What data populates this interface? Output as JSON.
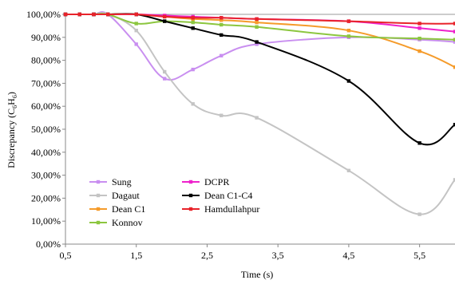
{
  "chart_data": {
    "type": "line",
    "title": "",
    "xlabel": "Time (s)",
    "ylabel": "Discrepancy (C",
    "ylabel_species": "H",
    "ylabel_sub1": "6",
    "ylabel_sub2": "6",
    "ylabel_close": ")",
    "xlim": [
      0.5,
      6.0
    ],
    "ylim": [
      0,
      100
    ],
    "xticks": [
      "0,5",
      "1,5",
      "2,5",
      "3,5",
      "4,5",
      "5,5"
    ],
    "xtick_values": [
      0.5,
      1.5,
      2.5,
      3.5,
      4.5,
      5.5
    ],
    "yticks": [
      "0,00%",
      "10,00%",
      "20,00%",
      "30,00%",
      "40,00%",
      "50,00%",
      "60,00%",
      "70,00%",
      "80,00%",
      "90,00%",
      "100,00%"
    ],
    "ytick_values": [
      0,
      10,
      20,
      30,
      40,
      50,
      60,
      70,
      80,
      90,
      100
    ],
    "grid": "horizontal line at 100% only",
    "legend_position": "lower-left",
    "series": [
      {
        "name": "Sung",
        "color": "#c98ff0",
        "x": [
          0.5,
          0.7,
          0.9,
          1.1,
          1.5,
          1.9,
          2.3,
          2.7,
          3.2,
          4.5,
          5.5,
          6.0
        ],
        "y": [
          100,
          100,
          100,
          100,
          87,
          72,
          76,
          82,
          87,
          90,
          89,
          88
        ]
      },
      {
        "name": "Dagaut",
        "color": "#c4c4c4",
        "x": [
          0.5,
          0.7,
          0.9,
          1.1,
          1.5,
          1.9,
          2.3,
          2.7,
          3.2,
          4.5,
          5.5,
          6.0
        ],
        "y": [
          100,
          100,
          100,
          100,
          93,
          75,
          61,
          56,
          55,
          32,
          13,
          28
        ]
      },
      {
        "name": "Dean C1",
        "color": "#f59b2a",
        "x": [
          0.5,
          0.7,
          0.9,
          1.1,
          1.5,
          1.9,
          2.3,
          2.7,
          3.2,
          4.5,
          5.5,
          6.0
        ],
        "y": [
          100,
          100,
          100,
          100,
          100,
          99,
          98,
          97.5,
          96.5,
          93,
          84,
          77
        ]
      },
      {
        "name": "Konnov",
        "color": "#8cc63f",
        "x": [
          0.5,
          0.7,
          0.9,
          1.1,
          1.5,
          1.9,
          2.3,
          2.7,
          3.2,
          4.5,
          5.5,
          6.0
        ],
        "y": [
          100,
          100,
          100,
          100,
          96,
          97,
          96.5,
          95.5,
          94.5,
          90.5,
          89.5,
          89
        ]
      },
      {
        "name": "DCPR",
        "color": "#ee22cc",
        "x": [
          0.5,
          0.7,
          0.9,
          1.1,
          1.5,
          1.9,
          2.3,
          2.7,
          3.2,
          4.5,
          5.5,
          6.0
        ],
        "y": [
          100,
          100,
          100,
          100,
          100,
          99.5,
          99,
          98.5,
          98,
          97,
          94,
          92.5
        ]
      },
      {
        "name": "Dean C1-C4",
        "color": "#000000",
        "x": [
          0.5,
          0.7,
          0.9,
          1.1,
          1.5,
          1.9,
          2.3,
          2.7,
          3.2,
          4.5,
          5.5,
          6.0
        ],
        "y": [
          100,
          100,
          100,
          100,
          100,
          97,
          94,
          91,
          88,
          71,
          44,
          52
        ]
      },
      {
        "name": "Hamdullahpur",
        "color": "#e8232a",
        "x": [
          0.5,
          0.7,
          0.9,
          1.1,
          1.5,
          1.9,
          2.3,
          2.7,
          3.2,
          4.5,
          5.5,
          6.0
        ],
        "y": [
          100,
          100,
          100,
          100,
          100,
          99,
          98.5,
          98.5,
          98,
          97,
          96,
          96
        ]
      }
    ]
  }
}
